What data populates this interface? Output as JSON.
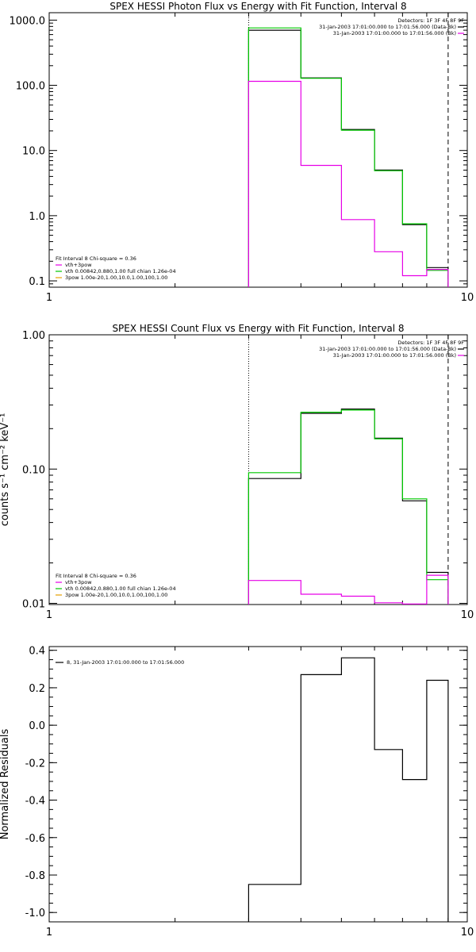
{
  "colors": {
    "data": "#000000",
    "total": "#00c800",
    "vth": "#00c800",
    "pow": "#e600e6",
    "pow2": "#ffc800",
    "gold": "#e6a000"
  },
  "chart_data": [
    {
      "type": "line",
      "title": "SPEX HESSI Photon Flux vs Energy with Fit Function, Interval 8",
      "xlabel": "",
      "ylabel": "",
      "xscale": "log",
      "yscale": "log",
      "xlim": [
        1,
        10
      ],
      "ylim": [
        0.08,
        1300
      ],
      "x_ticks": [
        {
          "v": 1,
          "label": "1"
        },
        {
          "v": 10,
          "label": "10"
        }
      ],
      "y_ticks": [
        {
          "v": 0.1,
          "label": "0.1"
        },
        {
          "v": 1,
          "label": "1.0"
        },
        {
          "v": 10,
          "label": "10.0"
        },
        {
          "v": 100,
          "label": "100.0"
        },
        {
          "v": 1000,
          "label": "1000.0"
        }
      ],
      "vlines": [
        {
          "x": 3,
          "style": "dotted"
        },
        {
          "x": 9,
          "style": "dashed"
        }
      ],
      "legend_tr": {
        "detectors": "Detectors: 1F 3F 4F 8F 9F",
        "entries": [
          {
            "text": "31-Jan-2003 17:01:00.000 to 17:01:56.000 (Data-Bk)",
            "color": "#000000"
          },
          {
            "text": "31-Jan-2003 17:01:00.000 to 17:01:56.000 (Bk)",
            "color": "#e600e6"
          }
        ]
      },
      "legend_bl": {
        "header": "Fit Interval 8   Chi-square = 0.36",
        "entries": [
          {
            "text": "vth+3pow",
            "color": "#e600e6"
          },
          {
            "text": "vth 0.00842,0.880,1.00   full chian 1.26e-04",
            "color": "#00c800"
          },
          {
            "text": "3pow 1.00e-20,1.00,10.0,1.00,100,1.00",
            "color": "#e6a000"
          }
        ]
      },
      "edges": [
        3,
        4,
        5,
        6,
        7,
        8,
        9
      ],
      "series": [
        {
          "name": "31-Jan-2003 17:01:00.000 to 17:01:56.000 (Data-Bk)",
          "color": "#000000",
          "values": [
            700,
            130,
            21,
            5,
            0.73,
            0.16
          ]
        },
        {
          "name": "vth+3pow",
          "color": "#00c800",
          "values": [
            760,
            128,
            20.5,
            4.9,
            0.75,
            0.145
          ]
        },
        {
          "name": "31-Jan-2003 17:01:00.000 to 17:01:56.000 (Bk)",
          "color": "#e600e6",
          "values": [
            115,
            5.9,
            0.87,
            0.28,
            0.12,
            0.15
          ]
        }
      ]
    },
    {
      "type": "line",
      "title": "SPEX HESSI Count Flux vs Energy with Fit Function, Interval 8",
      "xlabel": "",
      "ylabel": "counts s⁻¹ cm⁻² keV⁻¹",
      "xscale": "log",
      "yscale": "log",
      "xlim": [
        1,
        10
      ],
      "ylim": [
        0.0098,
        1.0
      ],
      "x_ticks": [
        {
          "v": 1,
          "label": "1"
        },
        {
          "v": 10,
          "label": "10"
        }
      ],
      "y_ticks": [
        {
          "v": 0.01,
          "label": "0.01"
        },
        {
          "v": 0.1,
          "label": "0.10"
        },
        {
          "v": 1,
          "label": "1.00"
        }
      ],
      "vlines": [
        {
          "x": 3,
          "style": "dotted"
        },
        {
          "x": 9,
          "style": "dashed"
        }
      ],
      "legend_tr": {
        "detectors": "Detectors: 1F 3F 4F 8F 9F",
        "entries": [
          {
            "text": "31-Jan-2003 17:01:00.000 to 17:01:56.000 (Data-Bk)",
            "color": "#000000"
          },
          {
            "text": "31-Jan-2003 17:01:00.000 to 17:01:56.000 (Bk)",
            "color": "#e600e6"
          }
        ]
      },
      "legend_bl": {
        "header": "Fit Interval 8   Chi-square = 0.36",
        "entries": [
          {
            "text": "vth+3pow",
            "color": "#e600e6"
          },
          {
            "text": "vth 0.00842,0.880,1.00   full chian 1.26e-04",
            "color": "#00c800"
          },
          {
            "text": "3pow 1.00e-20,1.00,10.0,1.00,100,1.00",
            "color": "#e6a000"
          }
        ]
      },
      "edges": [
        3,
        4,
        5,
        6,
        7,
        8,
        9
      ],
      "series": [
        {
          "name": "31-Jan-2003 17:01:00.000 to 17:01:56.000 (Data-Bk)",
          "color": "#000000",
          "values": [
            0.085,
            0.26,
            0.28,
            0.17,
            0.058,
            0.017
          ]
        },
        {
          "name": "vth+3pow",
          "color": "#00c800",
          "values": [
            0.094,
            0.265,
            0.275,
            0.168,
            0.06,
            0.015
          ]
        },
        {
          "name": "31-Jan-2003 17:01:00.000 to 17:01:56.000 (Bk)",
          "color": "#e600e6",
          "values": [
            0.0148,
            0.0117,
            0.0113,
            0.0101,
            0.0099,
            0.0162
          ]
        }
      ]
    },
    {
      "type": "line",
      "title": "",
      "xlabel": "",
      "ylabel": "Normalized Residuals",
      "xscale": "log",
      "yscale": "linear",
      "xlim": [
        1,
        10
      ],
      "ylim": [
        -1.05,
        0.42
      ],
      "x_ticks": [
        {
          "v": 1,
          "label": "1"
        },
        {
          "v": 10,
          "label": "10"
        }
      ],
      "y_ticks": [
        {
          "v": -1.0,
          "label": "-1.0"
        },
        {
          "v": -0.8,
          "label": "-0.8"
        },
        {
          "v": -0.6,
          "label": "-0.6"
        },
        {
          "v": -0.4,
          "label": "-0.4"
        },
        {
          "v": -0.2,
          "label": "-0.2"
        },
        {
          "v": 0.0,
          "label": "0.0"
        },
        {
          "v": 0.2,
          "label": "0.2"
        },
        {
          "v": 0.4,
          "label": "0.4"
        }
      ],
      "vlines": [],
      "legend_tl": {
        "entries": [
          {
            "text": "8, 31-Jan-2003 17:01:00.000 to 17:01:56.000",
            "color": "#000000"
          }
        ]
      },
      "edges": [
        3,
        4,
        5,
        6,
        7,
        8,
        9
      ],
      "series": [
        {
          "name": "8, 31-Jan-2003 17:01:00.000 to 17:01:56.000",
          "color": "#000000",
          "values": [
            -0.85,
            0.27,
            0.36,
            -0.13,
            -0.29,
            0.24
          ],
          "closed": true
        }
      ]
    }
  ]
}
